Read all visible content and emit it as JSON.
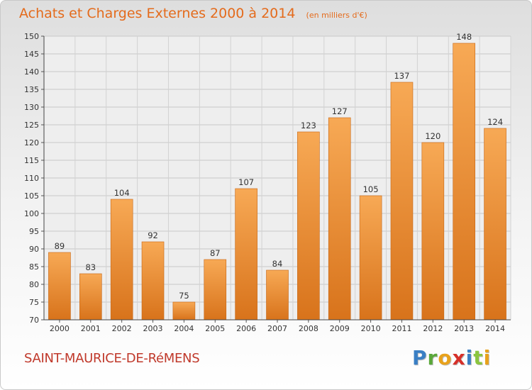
{
  "chart_data": {
    "type": "bar",
    "title": "Achats et Charges Externes 2000 à 2014",
    "unit": "(en milliers d'€)",
    "categories": [
      "2000",
      "2001",
      "2002",
      "2003",
      "2004",
      "2005",
      "2006",
      "2007",
      "2008",
      "2009",
      "2010",
      "2011",
      "2012",
      "2013",
      "2014"
    ],
    "values": [
      89,
      83,
      104,
      92,
      75,
      87,
      107,
      84,
      123,
      127,
      105,
      137,
      120,
      148,
      124
    ],
    "ylim": [
      70,
      150
    ],
    "yticks": [
      70,
      75,
      80,
      85,
      90,
      95,
      100,
      105,
      110,
      115,
      120,
      125,
      130,
      135,
      140,
      145,
      150
    ],
    "grid": true,
    "bar_color": "#f08a2c"
  },
  "city": "SAINT-MAURICE-DE-RéMENS",
  "logo": {
    "text": "Proxiti"
  },
  "colors": {
    "title": "#e46b1c",
    "city": "#c0392b",
    "bar_light": "#f7a955",
    "bar_dark": "#d8731b"
  }
}
